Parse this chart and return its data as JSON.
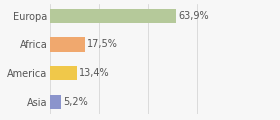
{
  "categories": [
    "Asia",
    "America",
    "Africa",
    "Europa"
  ],
  "values": [
    5.2,
    13.4,
    17.5,
    63.9
  ],
  "labels": [
    "5,2%",
    "13,4%",
    "17,5%",
    "63,9%"
  ],
  "bar_colors": [
    "#8b94cc",
    "#f0c84a",
    "#f0a86e",
    "#b5c99a"
  ],
  "background_color": "#f7f7f7",
  "xlim": [
    0,
    100
  ],
  "bar_height": 0.5,
  "label_fontsize": 7,
  "tick_fontsize": 7,
  "grid_color": "#d0d0d0",
  "text_color": "#555555"
}
